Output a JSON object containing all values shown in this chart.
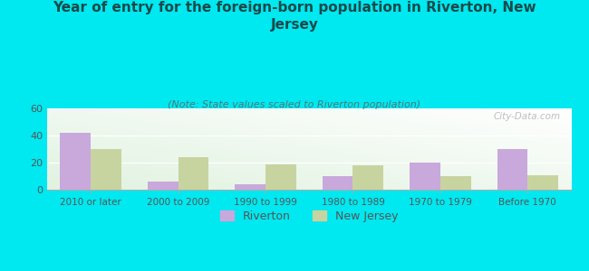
{
  "title": "Year of entry for the foreign-born population in Riverton, New\nJersey",
  "subtitle": "(Note: State values scaled to Riverton population)",
  "categories": [
    "2010 or later",
    "2000 to 2009",
    "1990 to 1999",
    "1980 to 1989",
    "1970 to 1979",
    "Before 1970"
  ],
  "riverton_values": [
    42,
    6,
    4,
    10,
    20,
    30
  ],
  "nj_values": [
    30,
    24,
    19,
    18,
    10,
    11
  ],
  "riverton_color": "#c9a8dc",
  "nj_color": "#c8d4a0",
  "background_outer": "#00e8f0",
  "ylim": [
    0,
    60
  ],
  "yticks": [
    0,
    20,
    40,
    60
  ],
  "bar_width": 0.35,
  "title_fontsize": 11,
  "subtitle_fontsize": 8,
  "legend_labels": [
    "Riverton",
    "New Jersey"
  ],
  "watermark": "City-Data.com",
  "title_color": "#1a4a4a",
  "subtitle_color": "#4a7a7a",
  "tick_color": "#555555",
  "x_tick_fontsize": 7.5,
  "y_tick_fontsize": 8
}
